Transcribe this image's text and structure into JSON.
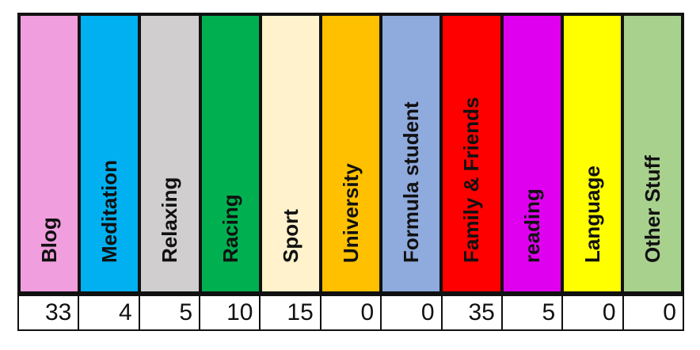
{
  "categories": [
    {
      "label": "Blog",
      "value": "33",
      "color": "#f09edd"
    },
    {
      "label": "Meditation",
      "value": "4",
      "color": "#00b0f0"
    },
    {
      "label": "Relaxing",
      "value": "5",
      "color": "#d0cece"
    },
    {
      "label": "Racing",
      "value": "10",
      "color": "#00b050"
    },
    {
      "label": "Sport",
      "value": "15",
      "color": "#fff2cc"
    },
    {
      "label": "University",
      "value": "0",
      "color": "#ffc000"
    },
    {
      "label": "Formula student",
      "value": "0",
      "color": "#8faadc"
    },
    {
      "label": "Family & Friends",
      "value": "35",
      "color": "#ff0000"
    },
    {
      "label": "reading",
      "value": "5",
      "color": "#e000f0"
    },
    {
      "label": "Language",
      "value": "0",
      "color": "#ffff00"
    },
    {
      "label": "Other Stuff",
      "value": "0",
      "color": "#a9d18e"
    }
  ]
}
